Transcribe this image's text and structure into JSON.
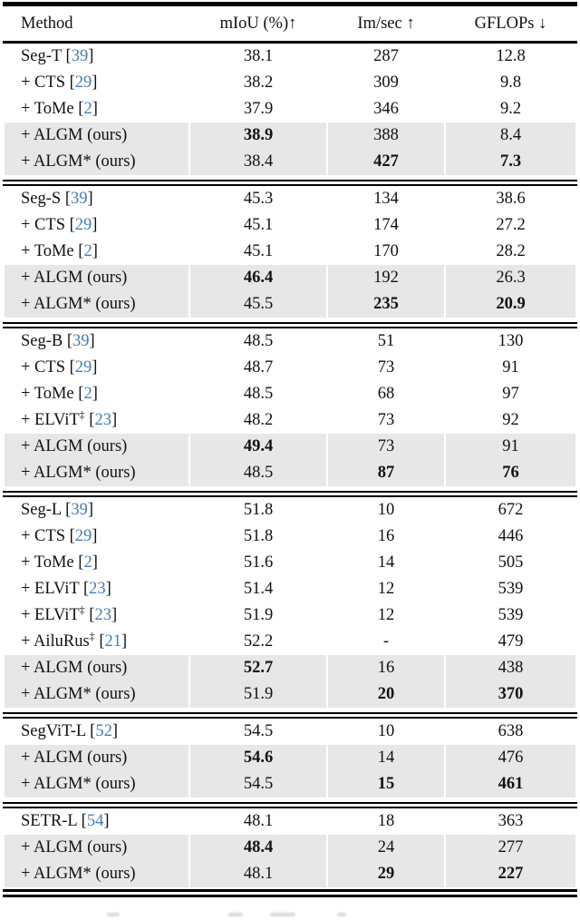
{
  "colors": {
    "citation_blue": "#3e7dbe",
    "highlight_gray": "#e7e7e7",
    "rule_black": "#000000"
  },
  "table": {
    "columns": [
      "Method",
      "mIoU (%)↑",
      "Im/sec ↑",
      "GFLOPs ↓"
    ],
    "sections": [
      {
        "rows": [
          {
            "method": "Seg-T",
            "sup": "",
            "cite": "39",
            "miou": "38.1",
            "miou_bold": false,
            "imsec": "287",
            "imsec_bold": false,
            "gflops": "12.8",
            "gflops_bold": false,
            "highlight": false
          },
          {
            "method": "+ CTS",
            "sup": "",
            "cite": "29",
            "miou": "38.2",
            "miou_bold": false,
            "imsec": "309",
            "imsec_bold": false,
            "gflops": "9.8",
            "gflops_bold": false,
            "highlight": false
          },
          {
            "method": "+ ToMe",
            "sup": "",
            "cite": "2",
            "miou": "37.9",
            "miou_bold": false,
            "imsec": "346",
            "imsec_bold": false,
            "gflops": "9.2",
            "gflops_bold": false,
            "highlight": false
          },
          {
            "method": "+ ALGM (ours)",
            "sup": "",
            "cite": "",
            "miou": "38.9",
            "miou_bold": true,
            "imsec": "388",
            "imsec_bold": false,
            "gflops": "8.4",
            "gflops_bold": false,
            "highlight": true
          },
          {
            "method": "+ ALGM* (ours)",
            "sup": "",
            "cite": "",
            "miou": "38.4",
            "miou_bold": false,
            "imsec": "427",
            "imsec_bold": true,
            "gflops": "7.3",
            "gflops_bold": true,
            "highlight": true
          }
        ]
      },
      {
        "rows": [
          {
            "method": "Seg-S",
            "sup": "",
            "cite": "39",
            "miou": "45.3",
            "miou_bold": false,
            "imsec": "134",
            "imsec_bold": false,
            "gflops": "38.6",
            "gflops_bold": false,
            "highlight": false
          },
          {
            "method": "+ CTS",
            "sup": "",
            "cite": "29",
            "miou": "45.1",
            "miou_bold": false,
            "imsec": "174",
            "imsec_bold": false,
            "gflops": "27.2",
            "gflops_bold": false,
            "highlight": false
          },
          {
            "method": "+ ToMe",
            "sup": "",
            "cite": "2",
            "miou": "45.1",
            "miou_bold": false,
            "imsec": "170",
            "imsec_bold": false,
            "gflops": "28.2",
            "gflops_bold": false,
            "highlight": false
          },
          {
            "method": "+ ALGM (ours)",
            "sup": "",
            "cite": "",
            "miou": "46.4",
            "miou_bold": true,
            "imsec": "192",
            "imsec_bold": false,
            "gflops": "26.3",
            "gflops_bold": false,
            "highlight": true
          },
          {
            "method": "+ ALGM* (ours)",
            "sup": "",
            "cite": "",
            "miou": "45.5",
            "miou_bold": false,
            "imsec": "235",
            "imsec_bold": true,
            "gflops": "20.9",
            "gflops_bold": true,
            "highlight": true
          }
        ]
      },
      {
        "rows": [
          {
            "method": "Seg-B",
            "sup": "",
            "cite": "39",
            "miou": "48.5",
            "miou_bold": false,
            "imsec": "51",
            "imsec_bold": false,
            "gflops": "130",
            "gflops_bold": false,
            "highlight": false
          },
          {
            "method": "+ CTS",
            "sup": "",
            "cite": "29",
            "miou": "48.7",
            "miou_bold": false,
            "imsec": "73",
            "imsec_bold": false,
            "gflops": "91",
            "gflops_bold": false,
            "highlight": false
          },
          {
            "method": "+ ToMe",
            "sup": "",
            "cite": "2",
            "miou": "48.5",
            "miou_bold": false,
            "imsec": "68",
            "imsec_bold": false,
            "gflops": "97",
            "gflops_bold": false,
            "highlight": false
          },
          {
            "method": "+ ELViT",
            "sup": "‡",
            "cite": "23",
            "miou": "48.2",
            "miou_bold": false,
            "imsec": "73",
            "imsec_bold": false,
            "gflops": "92",
            "gflops_bold": false,
            "highlight": false
          },
          {
            "method": "+ ALGM (ours)",
            "sup": "",
            "cite": "",
            "miou": "49.4",
            "miou_bold": true,
            "imsec": "73",
            "imsec_bold": false,
            "gflops": "91",
            "gflops_bold": false,
            "highlight": true
          },
          {
            "method": "+ ALGM* (ours)",
            "sup": "",
            "cite": "",
            "miou": "48.5",
            "miou_bold": false,
            "imsec": "87",
            "imsec_bold": true,
            "gflops": "76",
            "gflops_bold": true,
            "highlight": true
          }
        ]
      },
      {
        "rows": [
          {
            "method": "Seg-L",
            "sup": "",
            "cite": "39",
            "miou": "51.8",
            "miou_bold": false,
            "imsec": "10",
            "imsec_bold": false,
            "gflops": "672",
            "gflops_bold": false,
            "highlight": false
          },
          {
            "method": "+ CTS",
            "sup": "",
            "cite": "29",
            "miou": "51.8",
            "miou_bold": false,
            "imsec": "16",
            "imsec_bold": false,
            "gflops": "446",
            "gflops_bold": false,
            "highlight": false
          },
          {
            "method": "+ ToMe",
            "sup": "",
            "cite": "2",
            "miou": "51.6",
            "miou_bold": false,
            "imsec": "14",
            "imsec_bold": false,
            "gflops": "505",
            "gflops_bold": false,
            "highlight": false
          },
          {
            "method": "+ ELViT",
            "sup": "",
            "cite": "23",
            "miou": "51.4",
            "miou_bold": false,
            "imsec": "12",
            "imsec_bold": false,
            "gflops": "539",
            "gflops_bold": false,
            "highlight": false
          },
          {
            "method": "+ ELViT",
            "sup": "‡",
            "cite": "23",
            "miou": "51.9",
            "miou_bold": false,
            "imsec": "12",
            "imsec_bold": false,
            "gflops": "539",
            "gflops_bold": false,
            "highlight": false
          },
          {
            "method": "+ AiluRus",
            "sup": "‡",
            "cite": "21",
            "miou": "52.2",
            "miou_bold": false,
            "imsec": "-",
            "imsec_bold": false,
            "gflops": "479",
            "gflops_bold": false,
            "highlight": false
          },
          {
            "method": "+ ALGM (ours)",
            "sup": "",
            "cite": "",
            "miou": "52.7",
            "miou_bold": true,
            "imsec": "16",
            "imsec_bold": false,
            "gflops": "438",
            "gflops_bold": false,
            "highlight": true
          },
          {
            "method": "+ ALGM* (ours)",
            "sup": "",
            "cite": "",
            "miou": "51.9",
            "miou_bold": false,
            "imsec": "20",
            "imsec_bold": true,
            "gflops": "370",
            "gflops_bold": true,
            "highlight": true
          }
        ]
      },
      {
        "rows": [
          {
            "method": "SegViT-L",
            "sup": "",
            "cite": "52",
            "miou": "54.5",
            "miou_bold": false,
            "imsec": "10",
            "imsec_bold": false,
            "gflops": "638",
            "gflops_bold": false,
            "highlight": false
          },
          {
            "method": "+ ALGM (ours)",
            "sup": "",
            "cite": "",
            "miou": "54.6",
            "miou_bold": true,
            "imsec": "14",
            "imsec_bold": false,
            "gflops": "476",
            "gflops_bold": false,
            "highlight": true
          },
          {
            "method": "+ ALGM* (ours)",
            "sup": "",
            "cite": "",
            "miou": "54.5",
            "miou_bold": false,
            "imsec": "15",
            "imsec_bold": true,
            "gflops": "461",
            "gflops_bold": true,
            "highlight": true
          }
        ]
      },
      {
        "rows": [
          {
            "method": "SETR-L",
            "sup": "",
            "cite": "54",
            "miou": "48.1",
            "miou_bold": false,
            "imsec": "18",
            "imsec_bold": false,
            "gflops": "363",
            "gflops_bold": false,
            "highlight": false
          },
          {
            "method": "+ ALGM (ours)",
            "sup": "",
            "cite": "",
            "miou": "48.4",
            "miou_bold": true,
            "imsec": "24",
            "imsec_bold": false,
            "gflops": "277",
            "gflops_bold": false,
            "highlight": true
          },
          {
            "method": "+ ALGM* (ours)",
            "sup": "",
            "cite": "",
            "miou": "48.1",
            "miou_bold": false,
            "imsec": "29",
            "imsec_bold": true,
            "gflops": "227",
            "gflops_bold": true,
            "highlight": true
          }
        ]
      }
    ]
  }
}
